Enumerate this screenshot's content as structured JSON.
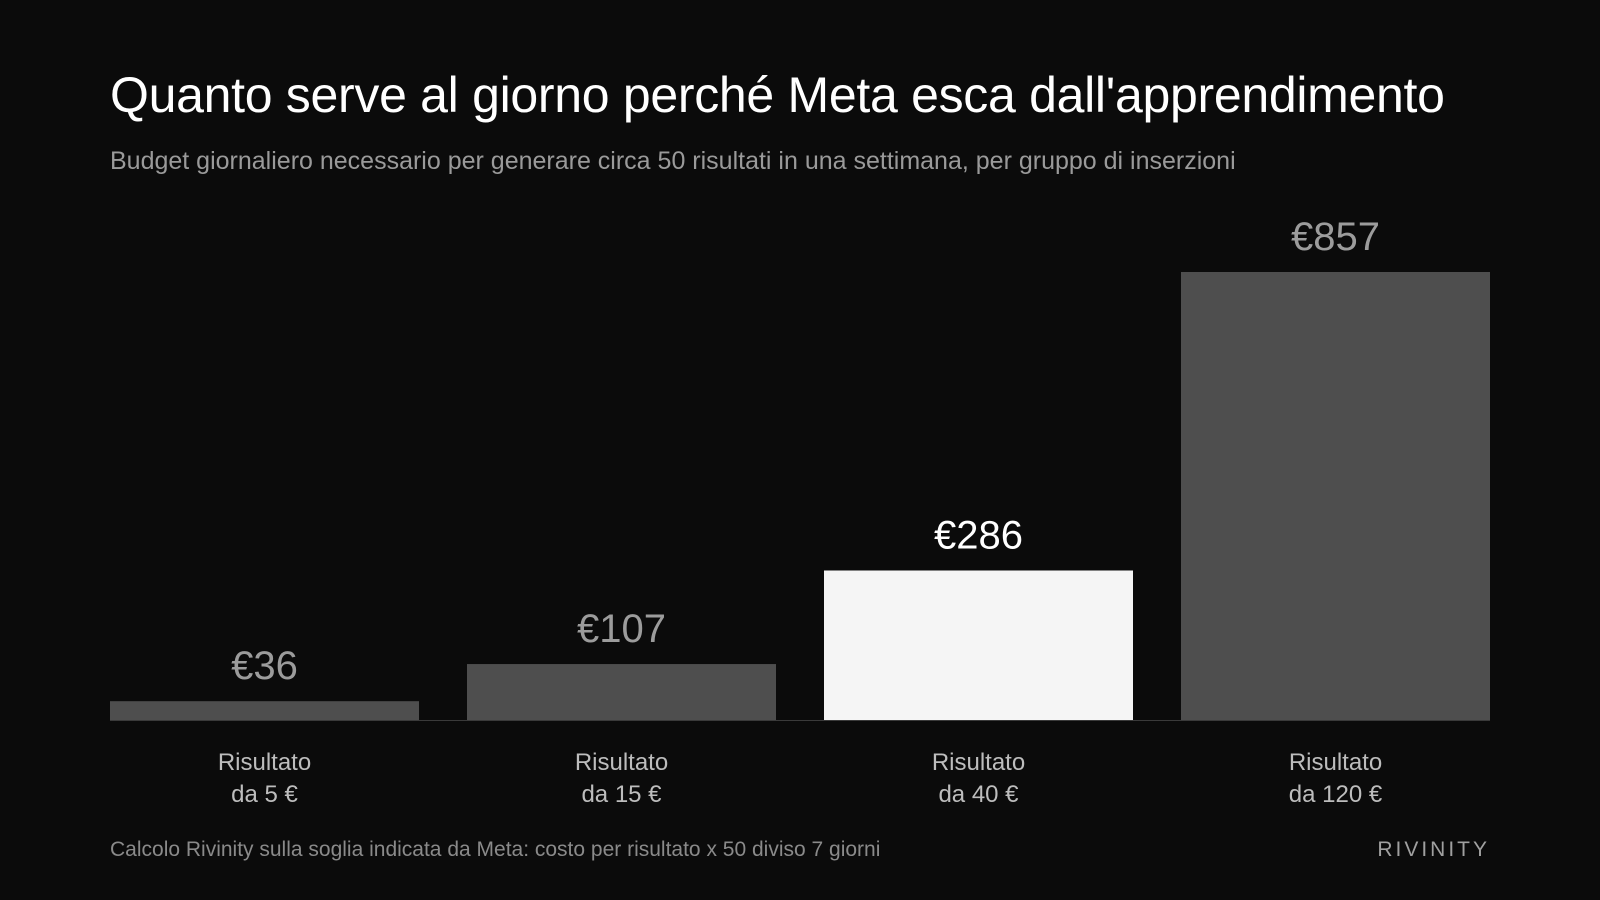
{
  "header": {
    "title": "Quanto serve al giorno perché Meta esca dall'apprendimento",
    "subtitle": "Budget giornaliero necessario per generare circa 50 risultati in una settimana, per gruppo di inserzioni"
  },
  "chart_data": {
    "type": "bar",
    "title": "Quanto serve al giorno perché Meta esca dall'apprendimento",
    "subtitle": "Budget giornaliero necessario per generare circa 50 risultati in una settimana, per gruppo di inserzioni",
    "categories": [
      [
        "Risultato",
        "da 5 €"
      ],
      [
        "Risultato",
        "da 15 €"
      ],
      [
        "Risultato",
        "da 40 €"
      ],
      [
        "Risultato",
        "da 120 €"
      ]
    ],
    "values": [
      36,
      107,
      286,
      857
    ],
    "data_labels": [
      "€36",
      "€107",
      "€286",
      "€857"
    ],
    "highlight_index": 2,
    "ylim": [
      0,
      857
    ],
    "grid": false,
    "colors": {
      "bar": "#4e4e4e",
      "highlight": "#f5f5f5",
      "label": "#9c9c9c",
      "highlight_label": "#ffffff",
      "baseline": "#3a3a3a",
      "category": "#bdbdbd"
    }
  },
  "footer": {
    "note": "Calcolo Rivinity sulla soglia indicata da Meta: costo per risultato x 50 diviso 7 giorni",
    "brand": "RIVINITY"
  }
}
